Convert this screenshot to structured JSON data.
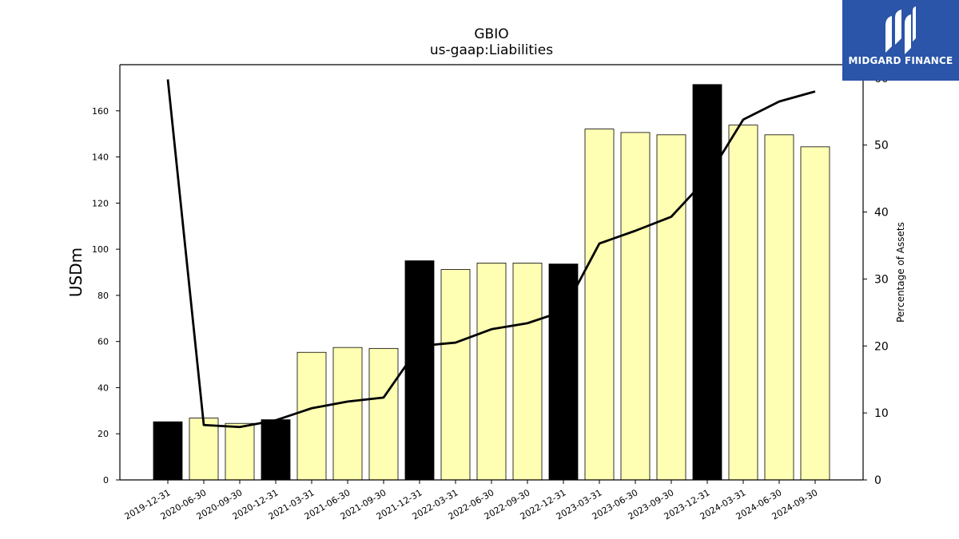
{
  "chart_data": {
    "type": "bar",
    "title": "GBIO",
    "subtitle": "us-gaap:Liabilities",
    "ylabel": "USDm",
    "ylabel_right": "Percentage of Assets",
    "ylim": [
      0,
      180
    ],
    "ylim_right": [
      0,
      62
    ],
    "yticks": [
      0,
      20,
      40,
      60,
      80,
      100,
      120,
      140,
      160
    ],
    "yticks_right": [
      0,
      10,
      20,
      30,
      40,
      50,
      60
    ],
    "categories": [
      "2019-12-31",
      "2020-06-30",
      "2020-09-30",
      "2020-12-31",
      "2021-03-31",
      "2021-06-30",
      "2021-09-30",
      "2021-12-31",
      "2022-03-31",
      "2022-06-30",
      "2022-09-30",
      "2022-12-31",
      "2023-03-31",
      "2023-06-30",
      "2023-09-30",
      "2023-12-31",
      "2024-03-31",
      "2024-06-30",
      "2024-09-30"
    ],
    "series": [
      {
        "kind": "bar",
        "values": [
          25.2,
          26.8,
          24.5,
          26.1,
          55.3,
          57.4,
          57.0,
          95.0,
          91.2,
          94.0,
          94.0,
          93.6,
          152.1,
          150.6,
          149.6,
          171.4,
          153.8,
          149.6,
          144.4
        ],
        "annual": [
          true,
          false,
          false,
          true,
          false,
          false,
          false,
          true,
          false,
          false,
          false,
          true,
          false,
          false,
          false,
          true,
          false,
          false,
          false
        ]
      },
      {
        "kind": "line",
        "axis": "right",
        "values": [
          59.8,
          8.2,
          7.9,
          8.9,
          10.7,
          11.7,
          12.3,
          20.0,
          20.5,
          22.5,
          23.4,
          25.2,
          35.3,
          37.2,
          39.3,
          45.1,
          53.8,
          56.5,
          58.0
        ]
      }
    ],
    "colors": {
      "annual_bar": "#000000",
      "quarter_bar": "#ffffb3",
      "line": "#000000"
    },
    "grid": false
  },
  "logo": {
    "text": "MIDGARD FINANCE",
    "icon": "midgard-logo-icon",
    "background": "#2a55a8"
  }
}
